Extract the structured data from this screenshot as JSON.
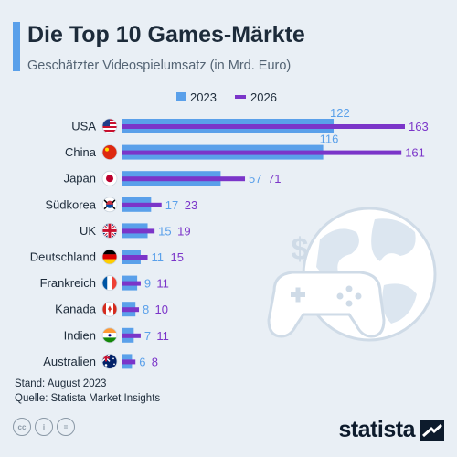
{
  "title": "Die Top 10 Games-Märkte",
  "subtitle": "Geschätzter Videospielumsatz (in Mrd. Euro)",
  "footer": {
    "stand": "Stand: August 2023",
    "source": "Quelle: Statista Market Insights"
  },
  "license": [
    "cc",
    "i",
    "="
  ],
  "brand": "statista",
  "colors": {
    "series_2023": "#5aa0ea",
    "series_2026": "#7b35c9",
    "background": "#e9eff5",
    "title": "#1d2b3a"
  },
  "chart_data": {
    "type": "bar",
    "orientation": "horizontal",
    "categories": [
      "USA",
      "China",
      "Japan",
      "Südkorea",
      "UK",
      "Deutschland",
      "Frankreich",
      "Kanada",
      "Indien",
      "Australien"
    ],
    "country_flags": [
      "us-flag-icon",
      "cn-flag-icon",
      "jp-flag-icon",
      "kr-flag-icon",
      "gb-flag-icon",
      "de-flag-icon",
      "fr-flag-icon",
      "ca-flag-icon",
      "in-flag-icon",
      "au-flag-icon"
    ],
    "series": [
      {
        "name": "2023",
        "values": [
          122,
          116,
          57,
          17,
          15,
          11,
          9,
          8,
          7,
          6
        ]
      },
      {
        "name": "2026",
        "values": [
          163,
          161,
          71,
          23,
          19,
          15,
          11,
          10,
          11,
          8
        ]
      }
    ],
    "title": "Die Top 10 Games-Märkte",
    "xlabel": "",
    "ylabel": "",
    "xlim": [
      0,
      163
    ],
    "legend_position": "top",
    "grid": false
  }
}
